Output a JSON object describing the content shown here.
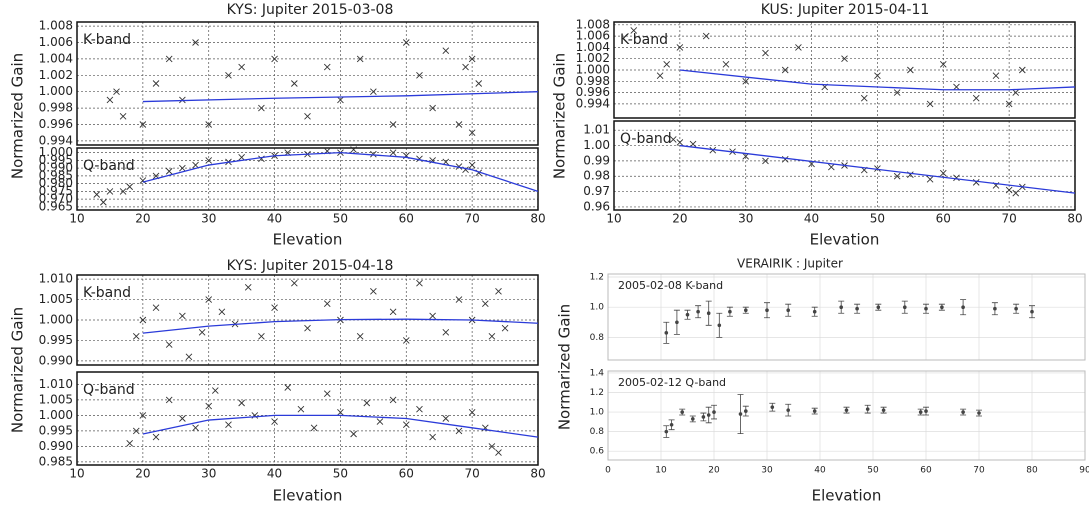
{
  "chart_data": [
    {
      "type": "scatter",
      "title": "KYS: Jupiter 2015-03-08",
      "ylabel": "Normarized Gain",
      "xlabel": "Elevation",
      "xlim": [
        10,
        80
      ],
      "xticks": [
        10,
        20,
        30,
        40,
        50,
        60,
        70,
        80
      ],
      "grid": "dashed",
      "subplots": [
        {
          "label": "K-band",
          "ylim": [
            0.9935,
            1.0085
          ],
          "yticks": [
            0.994,
            0.996,
            0.998,
            {
              "value": 1,
              "label": "1.000"
            },
            1.002,
            1.004,
            1.006,
            1.008
          ],
          "series": [
            {
              "marker": "x",
              "color": "#333333",
              "x": [
                15,
                16,
                17,
                20,
                22,
                24,
                26,
                28,
                30,
                33,
                35,
                38,
                40,
                43,
                45,
                48,
                50,
                53,
                55,
                58,
                60,
                62,
                64,
                66,
                68,
                69,
                70,
                70,
                71
              ],
              "values": [
                0.999,
                1.0,
                0.997,
                0.996,
                1.001,
                1.004,
                0.999,
                1.006,
                0.996,
                1.002,
                1.003,
                0.998,
                1.004,
                1.001,
                0.997,
                1.003,
                0.999,
                1.004,
                1.0,
                0.996,
                1.006,
                1.002,
                0.998,
                1.005,
                0.996,
                1.003,
                1.004,
                0.995,
                1.001
              ]
            },
            {
              "marker": "line",
              "color": "#2b3bd9",
              "x": [
                20,
                40,
                60,
                80
              ],
              "values": [
                0.9988,
                0.9992,
                0.9995,
                1.0
              ]
            }
          ]
        },
        {
          "label": "Q-band",
          "ylim": [
            0.963,
            1.003
          ],
          "yticks": [
            0.965,
            {
              "value": 0.97,
              "label": "0.970"
            },
            0.975,
            {
              "value": 0.98,
              "label": "0.980"
            },
            0.985,
            {
              "value": 0.99,
              "label": "0.990"
            },
            0.995,
            {
              "value": 1,
              "label": "1.000"
            }
          ],
          "series": [
            {
              "marker": "x",
              "color": "#333333",
              "x": [
                13,
                14,
                15,
                17,
                18,
                20,
                22,
                24,
                26,
                28,
                30,
                33,
                35,
                38,
                40,
                42,
                45,
                48,
                50,
                52,
                55,
                58,
                60,
                62,
                64,
                66,
                68,
                69,
                70,
                71
              ],
              "values": [
                0.973,
                0.968,
                0.975,
                0.975,
                0.978,
                0.982,
                0.985,
                0.988,
                0.99,
                0.992,
                0.995,
                0.994,
                0.997,
                0.996,
                0.998,
                1.0,
                0.999,
                1.001,
                1.0,
                1.002,
                0.999,
                1.0,
                0.998,
                0.996,
                0.995,
                0.994,
                0.991,
                0.989,
                0.992,
                0.987
              ]
            },
            {
              "marker": "line",
              "color": "#2b3bd9",
              "x": [
                20,
                30,
                40,
                50,
                60,
                70,
                80
              ],
              "values": [
                0.981,
                0.992,
                0.998,
                1.0,
                0.997,
                0.989,
                0.975
              ]
            }
          ]
        }
      ]
    },
    {
      "type": "scatter",
      "title": "KUS: Jupiter 2015-04-11",
      "ylabel": "Normarized Gain",
      "xlabel": "Elevation",
      "xlim": [
        10,
        80
      ],
      "xticks": [
        10,
        20,
        30,
        40,
        50,
        60,
        70,
        80
      ],
      "grid": "dashed",
      "subplots": [
        {
          "label": "K-band",
          "ylim": [
            0.9915,
            1.0085
          ],
          "yticks": [
            0.994,
            0.996,
            0.998,
            {
              "value": 1,
              "label": "1.000"
            },
            1.002,
            1.004,
            1.006,
            1.008
          ],
          "series": [
            {
              "marker": "x",
              "color": "#333333",
              "x": [
                13,
                17,
                18,
                20,
                24,
                27,
                30,
                33,
                36,
                38,
                42,
                45,
                48,
                50,
                53,
                55,
                58,
                60,
                62,
                65,
                68,
                70,
                71,
                72
              ],
              "values": [
                1.007,
                0.999,
                1.001,
                1.004,
                1.006,
                1.001,
                0.998,
                1.003,
                1.0,
                1.004,
                0.997,
                1.002,
                0.995,
                0.999,
                0.996,
                1.0,
                0.994,
                1.001,
                0.997,
                0.995,
                0.999,
                0.994,
                0.996,
                1.0
              ]
            },
            {
              "marker": "line",
              "color": "#2b3bd9",
              "x": [
                20,
                40,
                60,
                70,
                80
              ],
              "values": [
                1.0,
                0.9975,
                0.9965,
                0.9965,
                0.997
              ]
            }
          ]
        },
        {
          "label": "Q-band",
          "ylim": [
            0.958,
            1.016
          ],
          "yticks": [
            0.96,
            0.97,
            0.98,
            0.99,
            {
              "value": 1,
              "label": "1.00"
            },
            1.01
          ],
          "series": [
            {
              "marker": "x",
              "color": "#333333",
              "x": [
                19,
                20,
                22,
                25,
                28,
                30,
                33,
                36,
                40,
                43,
                45,
                48,
                50,
                53,
                55,
                58,
                60,
                62,
                65,
                68,
                70,
                71,
                72
              ],
              "values": [
                1.004,
                1.002,
                1.001,
                0.997,
                0.996,
                0.993,
                0.99,
                0.991,
                0.988,
                0.986,
                0.987,
                0.984,
                0.985,
                0.98,
                0.981,
                0.978,
                0.982,
                0.979,
                0.976,
                0.974,
                0.971,
                0.969,
                0.973
              ]
            },
            {
              "marker": "line",
              "color": "#2b3bd9",
              "x": [
                20,
                80
              ],
              "values": [
                1.0,
                0.969
              ]
            }
          ]
        }
      ]
    },
    {
      "type": "scatter",
      "title": "KYS: Jupiter 2015-04-18",
      "ylabel": "Normarized Gain",
      "xlabel": "Elevation",
      "xlim": [
        10,
        80
      ],
      "xticks": [
        10,
        20,
        30,
        40,
        50,
        60,
        70,
        80
      ],
      "grid": "dashed",
      "subplots": [
        {
          "label": "K-band",
          "ylim": [
            0.989,
            1.011
          ],
          "yticks": [
            {
              "value": 0.99,
              "label": "0.990"
            },
            0.995,
            {
              "value": 1,
              "label": "1.000"
            },
            1.005,
            {
              "value": 1.01,
              "label": "1.010"
            }
          ],
          "series": [
            {
              "marker": "x",
              "color": "#333333",
              "x": [
                19,
                20,
                22,
                24,
                26,
                27,
                29,
                30,
                32,
                34,
                36,
                38,
                40,
                43,
                45,
                48,
                50,
                53,
                55,
                58,
                60,
                62,
                64,
                66,
                68,
                70,
                72,
                73,
                74,
                75
              ],
              "values": [
                0.996,
                1.0,
                1.003,
                0.994,
                1.001,
                0.991,
                0.997,
                1.005,
                1.002,
                0.999,
                1.008,
                0.996,
                1.003,
                1.009,
                0.998,
                1.004,
                1.0,
                0.996,
                1.007,
                1.002,
                0.995,
                1.009,
                1.001,
                0.997,
                1.005,
                1.0,
                1.004,
                0.996,
                1.007,
                0.998
              ]
            },
            {
              "marker": "line",
              "color": "#2b3bd9",
              "x": [
                20,
                30,
                40,
                50,
                60,
                70,
                80
              ],
              "values": [
                0.9968,
                0.9985,
                0.9996,
                1.0001,
                1.0002,
                1.0,
                0.9992
              ]
            }
          ]
        },
        {
          "label": "Q-band",
          "ylim": [
            0.984,
            1.014
          ],
          "yticks": [
            0.985,
            {
              "value": 0.99,
              "label": "0.990"
            },
            0.995,
            {
              "value": 1,
              "label": "1.000"
            },
            1.005,
            {
              "value": 1.01,
              "label": "1.010"
            }
          ],
          "series": [
            {
              "marker": "x",
              "color": "#333333",
              "x": [
                18,
                19,
                20,
                22,
                24,
                26,
                28,
                30,
                31,
                33,
                35,
                37,
                40,
                42,
                44,
                46,
                48,
                50,
                52,
                54,
                56,
                58,
                60,
                62,
                64,
                66,
                68,
                70,
                72,
                73,
                74
              ],
              "values": [
                0.991,
                0.995,
                1.0,
                0.993,
                1.005,
                0.999,
                0.996,
                1.003,
                1.008,
                0.997,
                1.004,
                1.0,
                0.998,
                1.009,
                1.002,
                0.996,
                1.007,
                1.001,
                0.994,
                1.004,
                0.998,
                1.005,
                0.997,
                1.002,
                0.993,
                0.999,
                0.995,
                1.001,
                0.996,
                0.99,
                0.988
              ]
            },
            {
              "marker": "line",
              "color": "#2b3bd9",
              "x": [
                20,
                30,
                40,
                50,
                60,
                70,
                80
              ],
              "values": [
                0.994,
                0.9985,
                1.0,
                1.0,
                0.999,
                0.996,
                0.993
              ]
            }
          ]
        }
      ]
    },
    {
      "type": "errorbar",
      "title": "VERAIRIK : Jupiter",
      "ylabel": "Normarized Gain",
      "xlabel": "Elevation",
      "xlim": [
        0,
        90
      ],
      "xticks": [
        0,
        10,
        20,
        30,
        40,
        50,
        60,
        70,
        80,
        90
      ],
      "grid": "solid",
      "subplots": [
        {
          "label": "2005-02-08  K-band",
          "ylim": [
            0.65,
            1.22
          ],
          "yticks": [
            0.8,
            {
              "value": 1,
              "label": "1.0"
            },
            1.2
          ],
          "series": [
            {
              "marker": "dot",
              "color": "#444444",
              "x": [
                11,
                13,
                15,
                17,
                19,
                21,
                23,
                26,
                30,
                34,
                39,
                44,
                47,
                51,
                56,
                60,
                63,
                67,
                73,
                77,
                80
              ],
              "values": [
                0.83,
                0.9,
                0.95,
                0.97,
                0.96,
                0.88,
                0.97,
                0.98,
                0.98,
                0.98,
                0.97,
                1.0,
                0.99,
                1.0,
                1.0,
                0.99,
                1.0,
                1.0,
                0.99,
                0.99,
                0.97
              ],
              "errors": [
                0.07,
                0.08,
                0.03,
                0.04,
                0.08,
                0.08,
                0.03,
                0.02,
                0.05,
                0.04,
                0.03,
                0.04,
                0.03,
                0.02,
                0.04,
                0.03,
                0.02,
                0.05,
                0.04,
                0.03,
                0.04
              ]
            }
          ]
        },
        {
          "label": "2005-02-12  Q-band",
          "ylim": [
            0.51,
            1.42
          ],
          "yticks": [
            0.6,
            0.8,
            {
              "value": 1,
              "label": "1.0"
            },
            1.2,
            1.4
          ],
          "series": [
            {
              "marker": "dot",
              "color": "#444444",
              "x": [
                11,
                12,
                14,
                16,
                18,
                19,
                20,
                25,
                26,
                31,
                34,
                39,
                45,
                49,
                52,
                59,
                60,
                67,
                70
              ],
              "values": [
                0.8,
                0.87,
                1.0,
                0.93,
                0.95,
                0.97,
                1.0,
                0.98,
                1.01,
                1.05,
                1.02,
                1.01,
                1.02,
                1.03,
                1.02,
                1.0,
                1.01,
                1.0,
                0.99
              ],
              "errors": [
                0.06,
                0.05,
                0.03,
                0.03,
                0.04,
                0.08,
                0.07,
                0.2,
                0.05,
                0.04,
                0.06,
                0.03,
                0.03,
                0.04,
                0.03,
                0.03,
                0.04,
                0.03,
                0.03
              ]
            }
          ]
        }
      ]
    }
  ]
}
